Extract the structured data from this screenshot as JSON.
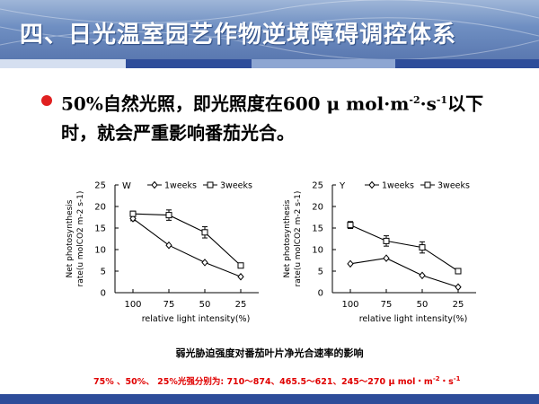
{
  "slide": {
    "title": "四、日光温室园艺作物逆境障碍调控体系",
    "bullet_line1_a": "50%自然光照，即光照度在600 μ mol·m",
    "bullet_sup1": "-2",
    "bullet_mid": "·s",
    "bullet_sup2": "-1",
    "bullet_line1_b": "以下",
    "bullet_line2": "时，就会严重影响番茄光合。",
    "caption": "弱光胁迫强度对番茄叶片净光合速率的影响",
    "footnote_a": "75% 、50%、 25%光强分别为:  710～874、465.5～621、245～270 μ mol・m",
    "footnote_sup1": "-2",
    "footnote_mid": "・s",
    "footnote_sup2": "-1",
    "colors": {
      "header_top": "#9fb6d8",
      "header_bottom": "#5a78b0",
      "bullet": "#e02020",
      "footnote": "#e00000",
      "bottom_bar": "#2e4d9a"
    }
  },
  "chart_data": [
    {
      "type": "line",
      "panel_label": "W",
      "categories": [
        "100",
        "75",
        "50",
        "25"
      ],
      "xlabel": "relative light intensity(%)",
      "ylabel_line1": "Net photosynthesis",
      "ylabel_line2": "rate(u molCO2 m-2 s-1)",
      "yticks": [
        "0",
        "5",
        "10",
        "15",
        "20",
        "25"
      ],
      "ylim": [
        0,
        25
      ],
      "series": [
        {
          "name": "1weeks",
          "marker": "diamond",
          "values": [
            17.2,
            11.0,
            7.0,
            3.7
          ],
          "errors": [
            0.5,
            0.3,
            0.3,
            0.3
          ]
        },
        {
          "name": "3weeks",
          "marker": "square",
          "values": [
            18.3,
            18.0,
            14.0,
            6.3
          ],
          "errors": [
            0.6,
            1.2,
            1.3,
            0.4
          ]
        }
      ]
    },
    {
      "type": "line",
      "panel_label": "Y",
      "categories": [
        "100",
        "75",
        "50",
        "25"
      ],
      "xlabel": "relative light intensity(%)",
      "ylabel_line1": "Net photosynthesis",
      "ylabel_line2": "rate(u molCO2 m-2 s-1)",
      "yticks": [
        "0",
        "5",
        "10",
        "15",
        "20",
        "25"
      ],
      "ylim": [
        0,
        25
      ],
      "series": [
        {
          "name": "1weeks",
          "marker": "diamond",
          "values": [
            6.7,
            8.0,
            4.0,
            1.3
          ],
          "errors": [
            0.3,
            0.3,
            0.3,
            0.2
          ]
        },
        {
          "name": "3weeks",
          "marker": "square",
          "values": [
            15.7,
            12.0,
            10.5,
            5.0
          ],
          "errors": [
            0.8,
            1.2,
            1.3,
            0.4
          ]
        }
      ]
    }
  ]
}
